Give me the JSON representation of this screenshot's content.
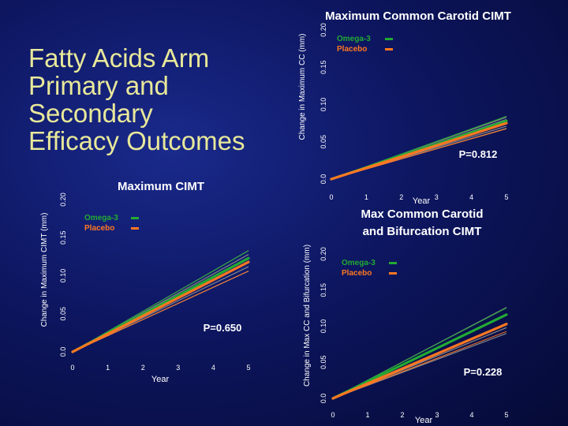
{
  "slide": {
    "title_lines": [
      "Fatty Acids Arm",
      "Primary and",
      "Secondary",
      "Efficacy Outcomes"
    ]
  },
  "colors": {
    "omega3": "#22aa33",
    "placebo": "#ff7722",
    "ci_band": "#888888",
    "text": "#ffffff",
    "title": "#e8e89a"
  },
  "legend_labels": {
    "omega3": "Omega-3",
    "placebo": "Placebo"
  },
  "chart_data": [
    {
      "id": "cc",
      "type": "line",
      "title": "Maximum Common Carotid CIMT",
      "title_lines": [
        "Maximum Common Carotid CIMT"
      ],
      "xlabel": "Year",
      "ylabel": "Change in Maximum CC (mm)",
      "x_ticks": [
        "0",
        "1",
        "2",
        "3",
        "4",
        "5"
      ],
      "y_ticks": [
        "0.0",
        "0.05",
        "0.10",
        "0.15",
        "0.20"
      ],
      "xlim": [
        0,
        5
      ],
      "ylim": [
        0,
        0.2
      ],
      "p_value": "P=0.812",
      "series": [
        {
          "name": "Omega-3",
          "key": "omega3",
          "x": [
            0,
            5
          ],
          "y": [
            0.0,
            0.078
          ]
        },
        {
          "name": "Placebo",
          "key": "placebo",
          "x": [
            0,
            5
          ],
          "y": [
            0.0,
            0.075
          ]
        }
      ],
      "ci_bands": [
        {
          "x": [
            0,
            5
          ],
          "y": [
            0.0,
            0.083
          ]
        },
        {
          "x": [
            0,
            5
          ],
          "y": [
            0.0,
            0.08
          ]
        },
        {
          "x": [
            0,
            5
          ],
          "y": [
            0.0,
            0.071
          ]
        },
        {
          "x": [
            0,
            5
          ],
          "y": [
            0.0,
            0.068
          ]
        }
      ]
    },
    {
      "id": "max",
      "type": "line",
      "title": "Maximum CIMT",
      "title_lines": [
        "Maximum CIMT"
      ],
      "xlabel": "Year",
      "ylabel": "Change in Maximum CIMT (mm)",
      "x_ticks": [
        "0",
        "1",
        "2",
        "3",
        "4",
        "5"
      ],
      "y_ticks": [
        "0.0",
        "0.05",
        "0.10",
        "0.15",
        "0.20"
      ],
      "xlim": [
        0,
        5
      ],
      "ylim": [
        0,
        0.2
      ],
      "p_value": "P=0.650",
      "series": [
        {
          "name": "Omega-3",
          "key": "omega3",
          "x": [
            0,
            5
          ],
          "y": [
            0.0,
            0.123
          ]
        },
        {
          "name": "Placebo",
          "key": "placebo",
          "x": [
            0,
            5
          ],
          "y": [
            0.0,
            0.118
          ]
        }
      ],
      "ci_bands": [
        {
          "x": [
            0,
            5
          ],
          "y": [
            0.0,
            0.133
          ]
        },
        {
          "x": [
            0,
            5
          ],
          "y": [
            0.0,
            0.128
          ]
        },
        {
          "x": [
            0,
            5
          ],
          "y": [
            0.0,
            0.112
          ]
        },
        {
          "x": [
            0,
            5
          ],
          "y": [
            0.0,
            0.106
          ]
        }
      ]
    },
    {
      "id": "bif",
      "type": "line",
      "title": "Max Common Carotid and Bifurcation CIMT",
      "title_lines": [
        "Max Common Carotid",
        "and Bifurcation CIMT"
      ],
      "xlabel": "Year",
      "ylabel": "Change in Max CC and Bifurcation (mm)",
      "x_ticks": [
        "0",
        "1",
        "2",
        "3",
        "4",
        "5"
      ],
      "y_ticks": [
        "0.0",
        "0.05",
        "0.10",
        "0.15",
        "0.20"
      ],
      "xlim": [
        0,
        5
      ],
      "ylim": [
        0,
        0.2
      ],
      "p_value": "P=0.228",
      "series": [
        {
          "name": "Omega-3",
          "key": "omega3",
          "x": [
            0,
            5
          ],
          "y": [
            0.0,
            0.116
          ]
        },
        {
          "name": "Placebo",
          "key": "placebo",
          "x": [
            0,
            5
          ],
          "y": [
            0.0,
            0.103
          ]
        }
      ],
      "ci_bands": [
        {
          "x": [
            0,
            5
          ],
          "y": [
            0.0,
            0.126
          ]
        },
        {
          "x": [
            0,
            5
          ],
          "y": [
            0.0,
            0.117
          ]
        },
        {
          "x": [
            0,
            5
          ],
          "y": [
            0.0,
            0.098
          ]
        },
        {
          "x": [
            0,
            5
          ],
          "y": [
            0.0,
            0.09
          ]
        }
      ]
    }
  ]
}
